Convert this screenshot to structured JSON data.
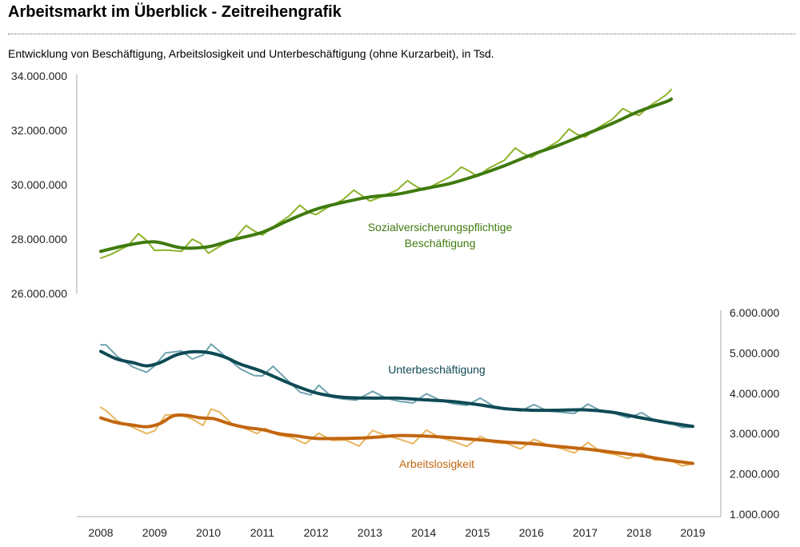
{
  "title": "Arbeitsmarkt im Überblick - Zeitreihengrafik",
  "subtitle": "Entwicklung von Beschäftigung, Arbeitslosigkeit und Unterbeschäftigung (ohne Kurzarbeit), in Tsd.",
  "colors": {
    "employment_trend": "#3F7A0E",
    "employment_raw": "#8DB32A",
    "underemployment_trend": "#0F4A55",
    "underemployment_raw": "#6FA3AE",
    "unemployment_trend": "#C2660F",
    "unemployment_raw": "#E8B660",
    "axis": "#aaaaaa"
  },
  "chart_data": [
    {
      "type": "line",
      "title": "",
      "xlabel": "",
      "ylabel": "",
      "x_ticks": [
        "2008",
        "2009",
        "2010",
        "2011",
        "2012",
        "2013",
        "2014",
        "2015",
        "2016",
        "2017",
        "2018",
        "2019"
      ],
      "y_ticks": [
        "26.000.000",
        "28.000.000",
        "30.000.000",
        "32.000.000",
        "34.000.000"
      ],
      "ylim": [
        26000000,
        34000000
      ],
      "xlim": [
        2008.0,
        2019.0
      ],
      "series": [
        {
          "name": "Sozialversicherungspflichtige Beschäftigung",
          "label_lines": [
            "Sozialversicherungspflichtige",
            "Beschäftigung"
          ],
          "smoothed": true,
          "x": [
            2008.0,
            2008.5,
            2009.0,
            2009.5,
            2010.0,
            2010.5,
            2011.0,
            2011.5,
            2012.0,
            2012.5,
            2013.0,
            2013.5,
            2014.0,
            2014.5,
            2015.0,
            2015.5,
            2016.0,
            2016.5,
            2017.0,
            2017.5,
            2018.0,
            2018.5,
            2018.6
          ],
          "y": [
            27550000,
            27780000,
            27900000,
            27680000,
            27720000,
            28000000,
            28250000,
            28700000,
            29100000,
            29350000,
            29550000,
            29650000,
            29850000,
            30050000,
            30350000,
            30700000,
            31100000,
            31450000,
            31850000,
            32250000,
            32700000,
            33050000,
            33150000
          ]
        },
        {
          "name": "Sozialversicherungspflichtige Beschäftigung (Originalwerte)",
          "smoothed": false,
          "x": [
            2008.0,
            2008.2,
            2008.5,
            2008.7,
            2008.85,
            2009.0,
            2009.2,
            2009.5,
            2009.7,
            2009.85,
            2010.0,
            2010.2,
            2010.5,
            2010.7,
            2010.85,
            2011.0,
            2011.2,
            2011.5,
            2011.7,
            2011.85,
            2012.0,
            2012.2,
            2012.5,
            2012.7,
            2012.85,
            2013.0,
            2013.2,
            2013.5,
            2013.7,
            2013.85,
            2014.0,
            2014.2,
            2014.5,
            2014.7,
            2014.85,
            2015.0,
            2015.2,
            2015.5,
            2015.7,
            2015.85,
            2016.0,
            2016.2,
            2016.5,
            2016.7,
            2016.85,
            2017.0,
            2017.2,
            2017.5,
            2017.7,
            2017.85,
            2018.0,
            2018.2,
            2018.5,
            2018.6
          ],
          "y": [
            27300000,
            27450000,
            27750000,
            28200000,
            27950000,
            27580000,
            27600000,
            27550000,
            28000000,
            27850000,
            27480000,
            27720000,
            28050000,
            28500000,
            28300000,
            28150000,
            28450000,
            28850000,
            29250000,
            29000000,
            28900000,
            29150000,
            29450000,
            29800000,
            29600000,
            29400000,
            29550000,
            29800000,
            30150000,
            29950000,
            29800000,
            30000000,
            30300000,
            30650000,
            30500000,
            30300000,
            30600000,
            30900000,
            31350000,
            31150000,
            31000000,
            31250000,
            31600000,
            32050000,
            31850000,
            31750000,
            32050000,
            32400000,
            32800000,
            32650000,
            32550000,
            32900000,
            33300000,
            33500000
          ]
        }
      ]
    },
    {
      "type": "line",
      "title": "",
      "xlabel": "",
      "ylabel": "",
      "x_ticks": [
        "2008",
        "2009",
        "2010",
        "2011",
        "2012",
        "2013",
        "2014",
        "2015",
        "2016",
        "2017",
        "2018",
        "2019"
      ],
      "y_ticks": [
        "1.000.000",
        "2.000.000",
        "3.000.000",
        "4.000.000",
        "5.000.000",
        "6.000.000"
      ],
      "ylim": [
        1000000,
        6000000
      ],
      "xlim": [
        2008.0,
        2019.0
      ],
      "series": [
        {
          "name": "Unterbeschäftigung",
          "smoothed": true,
          "x": [
            2008.0,
            2008.3,
            2008.6,
            2008.85,
            2009.1,
            2009.4,
            2009.7,
            2010.0,
            2010.3,
            2010.6,
            2011.0,
            2011.5,
            2012.0,
            2012.5,
            2013.0,
            2013.5,
            2014.0,
            2014.5,
            2015.0,
            2015.5,
            2016.0,
            2016.5,
            2017.0,
            2017.5,
            2018.0,
            2018.5,
            2019.0
          ],
          "y": [
            5040000,
            4850000,
            4760000,
            4680000,
            4760000,
            4950000,
            5030000,
            5010000,
            4900000,
            4720000,
            4540000,
            4250000,
            4010000,
            3900000,
            3880000,
            3880000,
            3840000,
            3800000,
            3720000,
            3620000,
            3580000,
            3580000,
            3590000,
            3530000,
            3400000,
            3280000,
            3180000
          ]
        },
        {
          "name": "Unterbeschäftigung (Originalwerte)",
          "smoothed": false,
          "x": [
            2008.0,
            2008.1,
            2008.3,
            2008.6,
            2008.85,
            2009.0,
            2009.2,
            2009.5,
            2009.7,
            2009.9,
            2010.05,
            2010.3,
            2010.6,
            2010.85,
            2011.0,
            2011.2,
            2011.5,
            2011.7,
            2011.9,
            2012.05,
            2012.3,
            2012.5,
            2012.75,
            2013.05,
            2013.3,
            2013.55,
            2013.8,
            2014.05,
            2014.3,
            2014.55,
            2014.8,
            2015.05,
            2015.3,
            2015.55,
            2015.8,
            2016.05,
            2016.3,
            2016.55,
            2016.8,
            2017.05,
            2017.3,
            2017.55,
            2017.8,
            2018.05,
            2018.3,
            2018.55,
            2018.8,
            2019.0
          ],
          "y": [
            5200000,
            5200000,
            4920000,
            4650000,
            4520000,
            4680000,
            5000000,
            5050000,
            4850000,
            4950000,
            5220000,
            4930000,
            4600000,
            4440000,
            4430000,
            4670000,
            4280000,
            4030000,
            3960000,
            4200000,
            3900000,
            3860000,
            3830000,
            4050000,
            3880000,
            3800000,
            3760000,
            3990000,
            3830000,
            3740000,
            3700000,
            3880000,
            3680000,
            3620000,
            3560000,
            3720000,
            3560000,
            3530000,
            3500000,
            3730000,
            3560000,
            3500000,
            3390000,
            3520000,
            3320000,
            3280000,
            3150000,
            3160000
          ]
        },
        {
          "name": "Arbeitslosigkeit",
          "smoothed": true,
          "x": [
            2008.0,
            2008.3,
            2008.6,
            2008.85,
            2009.1,
            2009.35,
            2009.6,
            2009.85,
            2010.1,
            2010.4,
            2010.7,
            2011.0,
            2011.3,
            2011.6,
            2012.0,
            2012.5,
            2013.0,
            2013.5,
            2014.0,
            2014.5,
            2015.0,
            2015.5,
            2016.0,
            2016.5,
            2017.0,
            2017.5,
            2018.0,
            2018.5,
            2019.0
          ],
          "y": [
            3390000,
            3270000,
            3210000,
            3170000,
            3250000,
            3440000,
            3450000,
            3390000,
            3370000,
            3240000,
            3150000,
            3100000,
            3000000,
            2950000,
            2880000,
            2880000,
            2900000,
            2950000,
            2940000,
            2900000,
            2850000,
            2790000,
            2750000,
            2680000,
            2620000,
            2540000,
            2460000,
            2350000,
            2260000
          ]
        },
        {
          "name": "Arbeitslosigkeit (Originalwerte)",
          "smoothed": false,
          "x": [
            2008.0,
            2008.1,
            2008.3,
            2008.6,
            2008.85,
            2009.0,
            2009.2,
            2009.45,
            2009.7,
            2009.9,
            2010.05,
            2010.2,
            2010.45,
            2010.7,
            2010.9,
            2011.05,
            2011.3,
            2011.55,
            2011.8,
            2012.05,
            2012.3,
            2012.55,
            2012.8,
            2013.05,
            2013.3,
            2013.55,
            2013.8,
            2014.05,
            2014.3,
            2014.55,
            2014.8,
            2015.05,
            2015.3,
            2015.55,
            2015.8,
            2016.05,
            2016.3,
            2016.55,
            2016.8,
            2017.05,
            2017.3,
            2017.55,
            2017.8,
            2018.05,
            2018.3,
            2018.55,
            2018.8,
            2019.0
          ],
          "y": [
            3650000,
            3570000,
            3320000,
            3150000,
            3000000,
            3070000,
            3460000,
            3480000,
            3360000,
            3200000,
            3610000,
            3540000,
            3230000,
            3120000,
            3000000,
            3130000,
            2960000,
            2900000,
            2750000,
            3010000,
            2830000,
            2840000,
            2690000,
            3080000,
            2950000,
            2860000,
            2750000,
            3090000,
            2900000,
            2810000,
            2680000,
            2930000,
            2780000,
            2750000,
            2620000,
            2860000,
            2720000,
            2630000,
            2520000,
            2780000,
            2540000,
            2480000,
            2380000,
            2520000,
            2340000,
            2360000,
            2200000,
            2250000
          ]
        }
      ]
    }
  ]
}
